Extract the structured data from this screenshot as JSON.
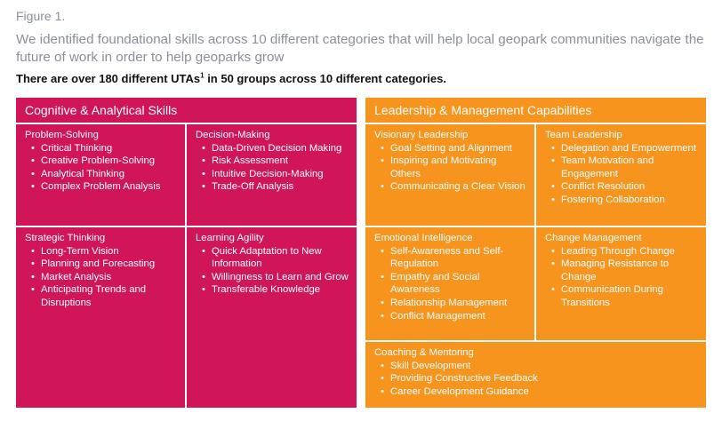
{
  "figure_label": "Figure 1.",
  "intro_text": "We identified foundational skills across 10 different categories that will help local geopark communities navigate the future of work in order to help geoparks grow",
  "headline": {
    "text": "There are over 180 different UTAs",
    "superscript": "1",
    "text_after": " in 50 groups across 10 different categories."
  },
  "colors": {
    "cognitive": "#d01559",
    "leadership": "#f7941d",
    "divider": "#ffffff"
  },
  "cognitive": {
    "title": "Cognitive & Analytical Skills",
    "cells": [
      {
        "title": "Problem-Solving",
        "items": [
          "Critical Thinking",
          "Creative Problem-Solving",
          "Analytical Thinking",
          "Complex Problem Analysis"
        ]
      },
      {
        "title": "Decision-Making",
        "items": [
          "Data-Driven Decision Making",
          "Risk Assessment",
          "Intuitive Decision-Making",
          "Trade-Off Analysis"
        ]
      },
      {
        "title": "Strategic Thinking",
        "items": [
          "Long-Term Vision",
          "Planning and Forecasting",
          "Market Analysis",
          "Anticipating Trends and Disruptions"
        ]
      },
      {
        "title": "Learning Agility",
        "items": [
          "Quick Adaptation to New Information",
          "Willingness to Learn and Grow",
          "Transferable Knowledge"
        ]
      }
    ]
  },
  "leadership": {
    "title": "Leadership & Management Capabilities",
    "cells": [
      {
        "title": "Visionary Leadership",
        "items": [
          "Goal Setting and Alignment",
          "Inspiring and Motivating Others",
          "Communicating a Clear Vision"
        ]
      },
      {
        "title": "Team Leadership",
        "items": [
          "Delegation and Empowerment",
          "Team Motivation and Engagement",
          "Conflict Resolution",
          "Fostering Collaboration"
        ]
      },
      {
        "title": "Emotional Intelligence",
        "items": [
          "Self-Awareness and Self-Regulation",
          "Empathy and Social Awareness",
          "Relationship Management",
          "Conflict Management"
        ]
      },
      {
        "title": "Change Management",
        "items": [
          "Leading Through Change",
          "Managing Resistance to Change",
          "Communication During Transitions"
        ]
      },
      {
        "title": "Coaching & Mentoring",
        "items": [
          "Skill Development",
          "Providing Constructive Feedback",
          "Career Development Guidance"
        ]
      }
    ]
  }
}
